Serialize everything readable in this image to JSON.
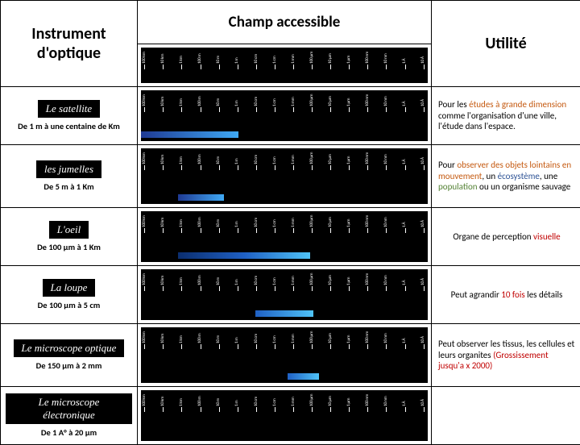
{
  "headers": {
    "col2": "Champ  accessible",
    "col1": "Instrument d'optique",
    "col3": "Utilité"
  },
  "scale_labels": [
    "100 km",
    "10 km",
    "1 km",
    "100 m",
    "10 m",
    "1 m",
    "10 cm",
    "1 cm",
    "1 mm",
    "100 μm",
    "10 μm",
    "1 μm",
    "100 nm",
    "10 nm",
    "1 Å",
    "10 Å"
  ],
  "rows": [
    {
      "name": "Le satellite",
      "range": "De 1 m à une centaine de Km",
      "util_html": "Pour les <span class='orange'>études à grande dimension</span> comme l'organisation d'une ville, l'étude dans l'espace.",
      "band": {
        "left_pct": 0,
        "width_pct": 34,
        "gradient": "linear-gradient(to right,#1f3a93,#3fa9f5)"
      }
    },
    {
      "name": "les jumelles",
      "range": "De 5 m à 1 Km",
      "util_html": "Pour <span class='orange'>observer des objets lointains en mouvement</span>, un <span class='blue'>écosystème</span>, une <span class='green'>population</span> ou un organisme sauvage",
      "band": {
        "left_pct": 13,
        "width_pct": 16,
        "gradient": "linear-gradient(to right,#1f3a93,#3fa9f5)"
      }
    },
    {
      "name": "L'oeil",
      "range": "De 100 μm à 1 Km",
      "util_html": "<span class='center'>Organe de perception <span class='red'>visuelle</span></span>",
      "band": {
        "left_pct": 13,
        "width_pct": 46,
        "gradient": "linear-gradient(to right,#0b2e6f,#1f60c4,#4fc3f7)"
      }
    },
    {
      "name": "La loupe",
      "range": "De 100 μm à 5 cm",
      "util_html": "<span class='center'>Peut agrandir <span class='red'>10 fois</span> les détails</span>",
      "band": {
        "left_pct": 40,
        "width_pct": 20,
        "gradient": "linear-gradient(to right,#1f60c4,#4fc3f7)"
      }
    },
    {
      "name": "Le microscope optique",
      "range": "De 150 μm à 2 mm",
      "util_html": "Peut observer les tissus, les cellules et leurs organites <span class='red'>(Grossissement jusqu'a x 2000)</span>",
      "band": {
        "left_pct": 51,
        "width_pct": 11,
        "gradient": "linear-gradient(to right,#1f60c4,#4fc3f7)"
      }
    },
    {
      "name": "Le microscope électronique",
      "range": "De 1 A° à 20 μm",
      "util_html": "",
      "band": null
    }
  ]
}
